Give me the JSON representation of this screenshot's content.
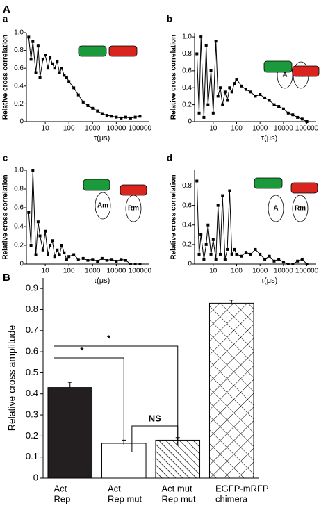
{
  "sections": [
    {
      "label": "A"
    },
    {
      "label": "B"
    }
  ],
  "chart_data": [
    {
      "type": "line",
      "panel": "a",
      "xscale": "log",
      "xlabel": "τ(μs)",
      "ylabel": "Relative cross correlation",
      "color": "#000000",
      "annotations": [],
      "x": [
        2,
        2.5,
        3,
        4,
        5,
        6,
        8,
        10,
        13,
        16,
        20,
        25,
        32,
        40,
        50,
        63,
        80,
        100,
        160,
        250,
        400,
        630,
        1000,
        1600,
        2500,
        4000,
        6300,
        10000,
        16000,
        25000,
        40000,
        63000,
        100000
      ],
      "values": [
        0.95,
        0.7,
        0.9,
        0.55,
        0.85,
        0.5,
        0.7,
        0.75,
        0.6,
        0.72,
        0.65,
        0.6,
        0.68,
        0.55,
        0.6,
        0.52,
        0.5,
        0.45,
        0.38,
        0.3,
        0.22,
        0.18,
        0.15,
        0.12,
        0.09,
        0.07,
        0.06,
        0.05,
        0.04,
        0.05,
        0.04,
        0.05,
        0.06
      ],
      "xlim": [
        1.6,
        250000
      ],
      "xticks": [
        10,
        100,
        1000,
        10000,
        100000
      ],
      "ylim": [
        0,
        1
      ],
      "yticks": [
        0,
        0.2,
        0.4,
        0.6,
        0.8,
        {
          "value": 1,
          "label": "1.0"
        }
      ]
    },
    {
      "type": "line",
      "panel": "b",
      "xscale": "log",
      "xlabel": "τ(μs)",
      "ylabel": "Relative cross correlation",
      "color": "#000000",
      "annotations": [
        "A",
        "R"
      ],
      "x": [
        2,
        2.5,
        3,
        4,
        5,
        6,
        8,
        10,
        13,
        16,
        20,
        25,
        32,
        40,
        50,
        63,
        80,
        100,
        160,
        250,
        400,
        630,
        1000,
        1600,
        2500,
        4000,
        6300,
        10000,
        16000,
        25000,
        40000,
        63000,
        100000
      ],
      "values": [
        0.8,
        0.1,
        1.0,
        0.05,
        0.9,
        0.2,
        0.6,
        0.1,
        0.95,
        0.3,
        0.4,
        0.2,
        0.35,
        0.25,
        0.4,
        0.35,
        0.45,
        0.5,
        0.42,
        0.38,
        0.35,
        0.3,
        0.32,
        0.28,
        0.25,
        0.2,
        0.18,
        0.15,
        0.1,
        0.08,
        0.05,
        0.03,
        0.0
      ],
      "xlim": [
        1.6,
        250000
      ],
      "xticks": [
        10,
        100,
        1000,
        10000,
        100000
      ],
      "ylim": [
        0,
        1.05
      ],
      "yticks": [
        0,
        0.2,
        0.4,
        0.6,
        0.8,
        {
          "value": 1,
          "label": "1.0"
        }
      ]
    },
    {
      "type": "line",
      "panel": "c",
      "xscale": "log",
      "xlabel": "τ(μs)",
      "ylabel": "Relative cross correlation",
      "color": "#000000",
      "annotations": [
        "Am",
        "Rm"
      ],
      "x": [
        2,
        2.5,
        3,
        4,
        5,
        6,
        8,
        10,
        13,
        16,
        20,
        25,
        32,
        40,
        50,
        63,
        80,
        100,
        160,
        250,
        400,
        630,
        1000,
        1600,
        2500,
        4000,
        6300,
        10000,
        16000,
        25000,
        40000,
        63000,
        100000
      ],
      "values": [
        0.55,
        0.2,
        1.0,
        0.1,
        0.45,
        0.3,
        0.15,
        0.35,
        0.1,
        0.2,
        0.25,
        0.08,
        0.15,
        0.1,
        0.2,
        0.12,
        0.05,
        0.08,
        0.1,
        0.05,
        0.06,
        0.04,
        0.05,
        0.03,
        0.06,
        0.04,
        0.05,
        0.03,
        0.05,
        0.04,
        0.0,
        0.0,
        0.0
      ],
      "xlim": [
        1.6,
        250000
      ],
      "xticks": [
        10,
        100,
        1000,
        10000,
        100000
      ],
      "ylim": [
        0,
        1
      ],
      "yticks": [
        0,
        0.2,
        0.4,
        0.6,
        0.8,
        {
          "value": 1,
          "label": "1.0"
        }
      ]
    },
    {
      "type": "line",
      "panel": "d",
      "xscale": "log",
      "xlabel": "τ(μs)",
      "ylabel": "Relative cross correlation",
      "color": "#000000",
      "annotations": [
        "A",
        "Rm"
      ],
      "x": [
        2,
        2.5,
        3,
        4,
        5,
        6,
        8,
        10,
        13,
        16,
        20,
        25,
        32,
        40,
        50,
        63,
        80,
        100,
        160,
        250,
        400,
        630,
        1000,
        1600,
        2500,
        4000,
        6300,
        10000,
        16000,
        25000,
        40000,
        63000,
        100000
      ],
      "values": [
        0.85,
        0.1,
        0.3,
        0.05,
        0.2,
        0.4,
        0.1,
        0.25,
        0.05,
        0.6,
        0.1,
        0.7,
        0.05,
        0.15,
        0.75,
        0.1,
        0.15,
        0.1,
        0.08,
        0.12,
        0.1,
        0.15,
        0.1,
        0.05,
        0.08,
        0.03,
        0.05,
        0.02,
        0.0,
        0.0,
        0.03,
        0.05,
        0.0
      ],
      "xlim": [
        1.6,
        250000
      ],
      "xticks": [
        10,
        100,
        1000,
        10000,
        100000
      ],
      "ylim": [
        0,
        0.96
      ],
      "yticks": [
        0,
        0.2,
        0.4,
        0.6,
        0.8
      ]
    },
    {
      "type": "bar",
      "ylabel": "Relative cross amplitude",
      "categories": [
        [
          "Act",
          "Rep"
        ],
        [
          "Act",
          "Rep mut"
        ],
        [
          "Act mut",
          "Rep mut"
        ],
        [
          "EGFP-mRFP",
          "chimera"
        ]
      ],
      "values": [
        0.43,
        0.165,
        0.18,
        0.83
      ],
      "errors": [
        0.025,
        0.015,
        0.012,
        0.015
      ],
      "fills": [
        "solid",
        "none",
        "hatch",
        "crosshatch"
      ],
      "annotations": [
        "*",
        "*",
        "NS"
      ],
      "ylim": [
        0,
        0.95
      ],
      "yticks": [
        0,
        0.1,
        0.2,
        0.3,
        0.4,
        0.5,
        0.6,
        0.7,
        0.8,
        0.9
      ]
    }
  ]
}
